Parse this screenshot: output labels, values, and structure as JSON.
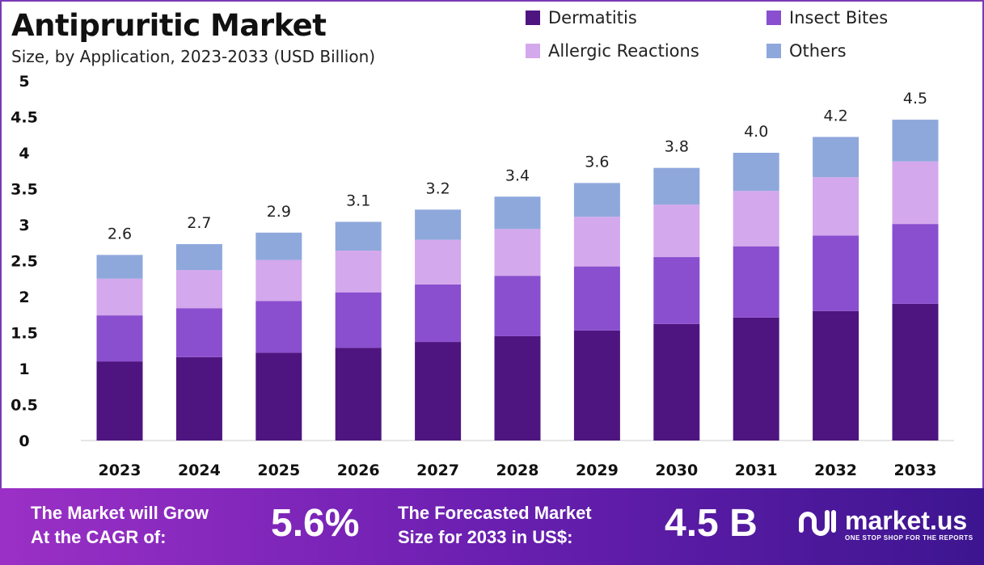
{
  "title": "Antipruritic Market",
  "subtitle": "Size, by Application, 2023-2033 (USD Billion)",
  "chart_data": {
    "type": "bar",
    "stacked": true,
    "title": "Antipruritic Market",
    "subtitle": "Size, by Application, 2023-2033 (USD Billion)",
    "categories": [
      "2023",
      "2024",
      "2025",
      "2026",
      "2027",
      "2028",
      "2029",
      "2030",
      "2031",
      "2032",
      "2033"
    ],
    "series": [
      {
        "name": "Dermatitis",
        "color": "#4e1580",
        "values": [
          1.1,
          1.16,
          1.22,
          1.29,
          1.37,
          1.45,
          1.53,
          1.62,
          1.71,
          1.8,
          1.9
        ]
      },
      {
        "name": "Insect Bites",
        "color": "#8a4fcf",
        "values": [
          0.64,
          0.68,
          0.72,
          0.77,
          0.8,
          0.84,
          0.89,
          0.93,
          0.99,
          1.05,
          1.11
        ]
      },
      {
        "name": "Allergic Reactions",
        "color": "#d4a8ec",
        "values": [
          0.51,
          0.53,
          0.57,
          0.58,
          0.62,
          0.65,
          0.69,
          0.73,
          0.77,
          0.81,
          0.87
        ]
      },
      {
        "name": "Others",
        "color": "#8fa8dc",
        "values": [
          0.33,
          0.36,
          0.38,
          0.4,
          0.42,
          0.45,
          0.47,
          0.51,
          0.53,
          0.56,
          0.58
        ]
      }
    ],
    "totals": [
      "2.6",
      "2.7",
      "2.9",
      "3.1",
      "3.2",
      "3.4",
      "3.6",
      "3.8",
      "4.0",
      "4.2",
      "4.5"
    ],
    "yticks": [
      "0",
      "0.5",
      "1",
      "1.5",
      "2",
      "2.5",
      "3",
      "3.5",
      "4",
      "4.5",
      "5"
    ],
    "ylim": [
      0,
      5
    ],
    "grid": false,
    "legend": "top-right"
  },
  "footer": {
    "cagr_label_1": "The Market will Grow",
    "cagr_label_2": "At the CAGR of:",
    "cagr_value": "5.6%",
    "forecast_label_1": "The Forecasted Market",
    "forecast_label_2": "Size for 2033 in US$:",
    "forecast_value": "4.5 B",
    "brand": "market.us",
    "tagline": "ONE STOP SHOP FOR THE REPORTS"
  }
}
